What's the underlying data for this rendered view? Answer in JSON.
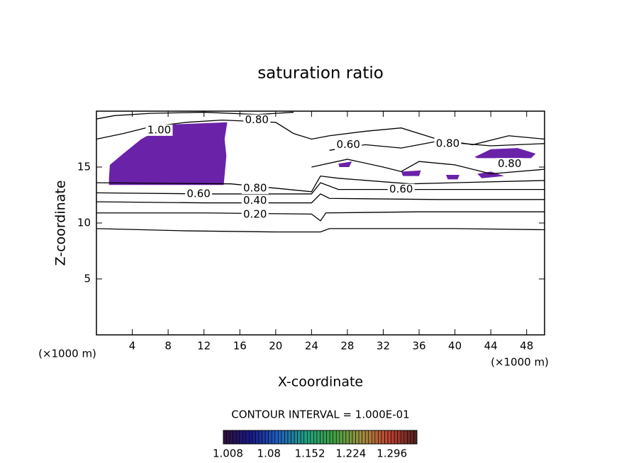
{
  "chart_data": {
    "type": "contour",
    "title": "saturation ratio",
    "x_label": "X-coordinate",
    "y_label": "Z-coordinate",
    "x_unit": "(×1000 m)",
    "xlim": [
      0,
      50
    ],
    "xticks": [
      4,
      8,
      12,
      16,
      20,
      24,
      28,
      32,
      36,
      40,
      44,
      48
    ],
    "ylim": [
      0,
      20
    ],
    "yticks": [
      5,
      10,
      15
    ],
    "contours": [
      {
        "x": [
          0,
          10,
          20,
          25,
          26,
          40,
          50
        ],
        "y": [
          9.5,
          9.3,
          9.2,
          9.2,
          9.5,
          9.5,
          9.4
        ]
      },
      {
        "x": [
          0,
          12,
          24,
          25,
          25.6,
          36,
          50
        ],
        "y": [
          10.9,
          10.9,
          10.8,
          10.2,
          10.9,
          11.0,
          11.0
        ]
      },
      {
        "x": [
          0,
          12,
          24,
          25,
          26,
          38,
          50
        ],
        "y": [
          11.9,
          11.8,
          11.8,
          12.6,
          12.2,
          12.1,
          12.1
        ]
      },
      {
        "x": [
          0,
          12,
          24,
          25,
          27,
          38,
          50
        ],
        "y": [
          12.7,
          12.6,
          12.6,
          13.6,
          13.0,
          13.0,
          13.0
        ]
      },
      {
        "x": [
          0,
          15,
          24,
          25,
          27,
          35,
          50
        ],
        "y": [
          13.6,
          13.5,
          12.8,
          14.2,
          14.0,
          13.5,
          13.8
        ]
      },
      {
        "x": [
          0,
          3,
          6,
          10,
          14,
          20,
          22,
          24,
          26,
          30,
          34,
          38,
          42,
          46,
          50
        ],
        "y": [
          17.5,
          18,
          18.6,
          19,
          19.2,
          19,
          18,
          17.5,
          17.8,
          18.2,
          18.5,
          17.5,
          17,
          17.8,
          17.5
        ]
      },
      {
        "x": [
          26,
          30,
          34,
          38,
          44,
          50
        ],
        "y": [
          16.5,
          17,
          16.7,
          17.3,
          16.9,
          17.1
        ]
      },
      {
        "x": [
          24,
          28,
          32,
          34,
          36,
          40,
          44,
          50
        ],
        "y": [
          15,
          15.7,
          15,
          14.6,
          15.5,
          15.2,
          14.4,
          14.8
        ]
      },
      {
        "x": [
          0,
          2,
          6,
          12,
          18,
          22
        ],
        "y": [
          19.3,
          19.6,
          19.8,
          19.9,
          19.7,
          19.9
        ]
      }
    ],
    "filled_regions": [
      {
        "color": "#6a22a8",
        "x": [
          1.4,
          1.5,
          3,
          5,
          8,
          14.6,
          14.3,
          14.5,
          14.2,
          1.4
        ],
        "y": [
          14,
          15.2,
          16.2,
          17.5,
          18.8,
          19.0,
          17.5,
          16,
          13.4,
          13.4
        ]
      },
      {
        "color": "#6a22a8",
        "x": [
          42.2,
          44,
          47,
          49,
          48.5,
          42.5
        ],
        "y": [
          15.9,
          16.6,
          16.7,
          16.2,
          15.8,
          15.8
        ]
      },
      {
        "color": "#6a22a8",
        "x": [
          27,
          28.5,
          28.2,
          27.1
        ],
        "y": [
          15.3,
          15.5,
          15.0,
          15.0
        ]
      },
      {
        "color": "#6a22a8",
        "x": [
          34,
          36.2,
          36,
          34.2
        ],
        "y": [
          14.6,
          14.7,
          14.2,
          14.2
        ]
      },
      {
        "color": "#6a22a8",
        "x": [
          39,
          40.5,
          40.3,
          39.2
        ],
        "y": [
          14.3,
          14.3,
          13.9,
          13.9
        ]
      },
      {
        "color": "#6a22a8",
        "x": [
          42.5,
          44,
          45.5,
          43
        ],
        "y": [
          14.4,
          14.6,
          14.2,
          14.0
        ]
      }
    ],
    "contour_labels": [
      {
        "text": "1.00",
        "x": 7.0,
        "y": 18.3
      },
      {
        "text": "0.80",
        "x": 17.9,
        "y": 19.2
      },
      {
        "text": "0.60",
        "x": 28.1,
        "y": 17.0
      },
      {
        "text": "0.80",
        "x": 39.2,
        "y": 17.1
      },
      {
        "text": "0.80",
        "x": 46.1,
        "y": 15.3
      },
      {
        "text": "0.60",
        "x": 11.4,
        "y": 12.6
      },
      {
        "text": "0.80",
        "x": 17.7,
        "y": 13.1
      },
      {
        "text": "0.40",
        "x": 17.7,
        "y": 12.0
      },
      {
        "text": "0.20",
        "x": 17.7,
        "y": 10.75
      },
      {
        "text": "0.60",
        "x": 34.0,
        "y": 13.0
      }
    ],
    "contour_interval": "CONTOUR INTERVAL = 1.000E-01",
    "colorbar": {
      "lim": [
        1.0,
        1.34
      ],
      "ticks": [
        1.008,
        1.08,
        1.152,
        1.224,
        1.296
      ],
      "colors": [
        "#30103a",
        "#1a1a8a",
        "#2060c0",
        "#20a080",
        "#40a040",
        "#a09040",
        "#c04030",
        "#502020"
      ]
    }
  }
}
